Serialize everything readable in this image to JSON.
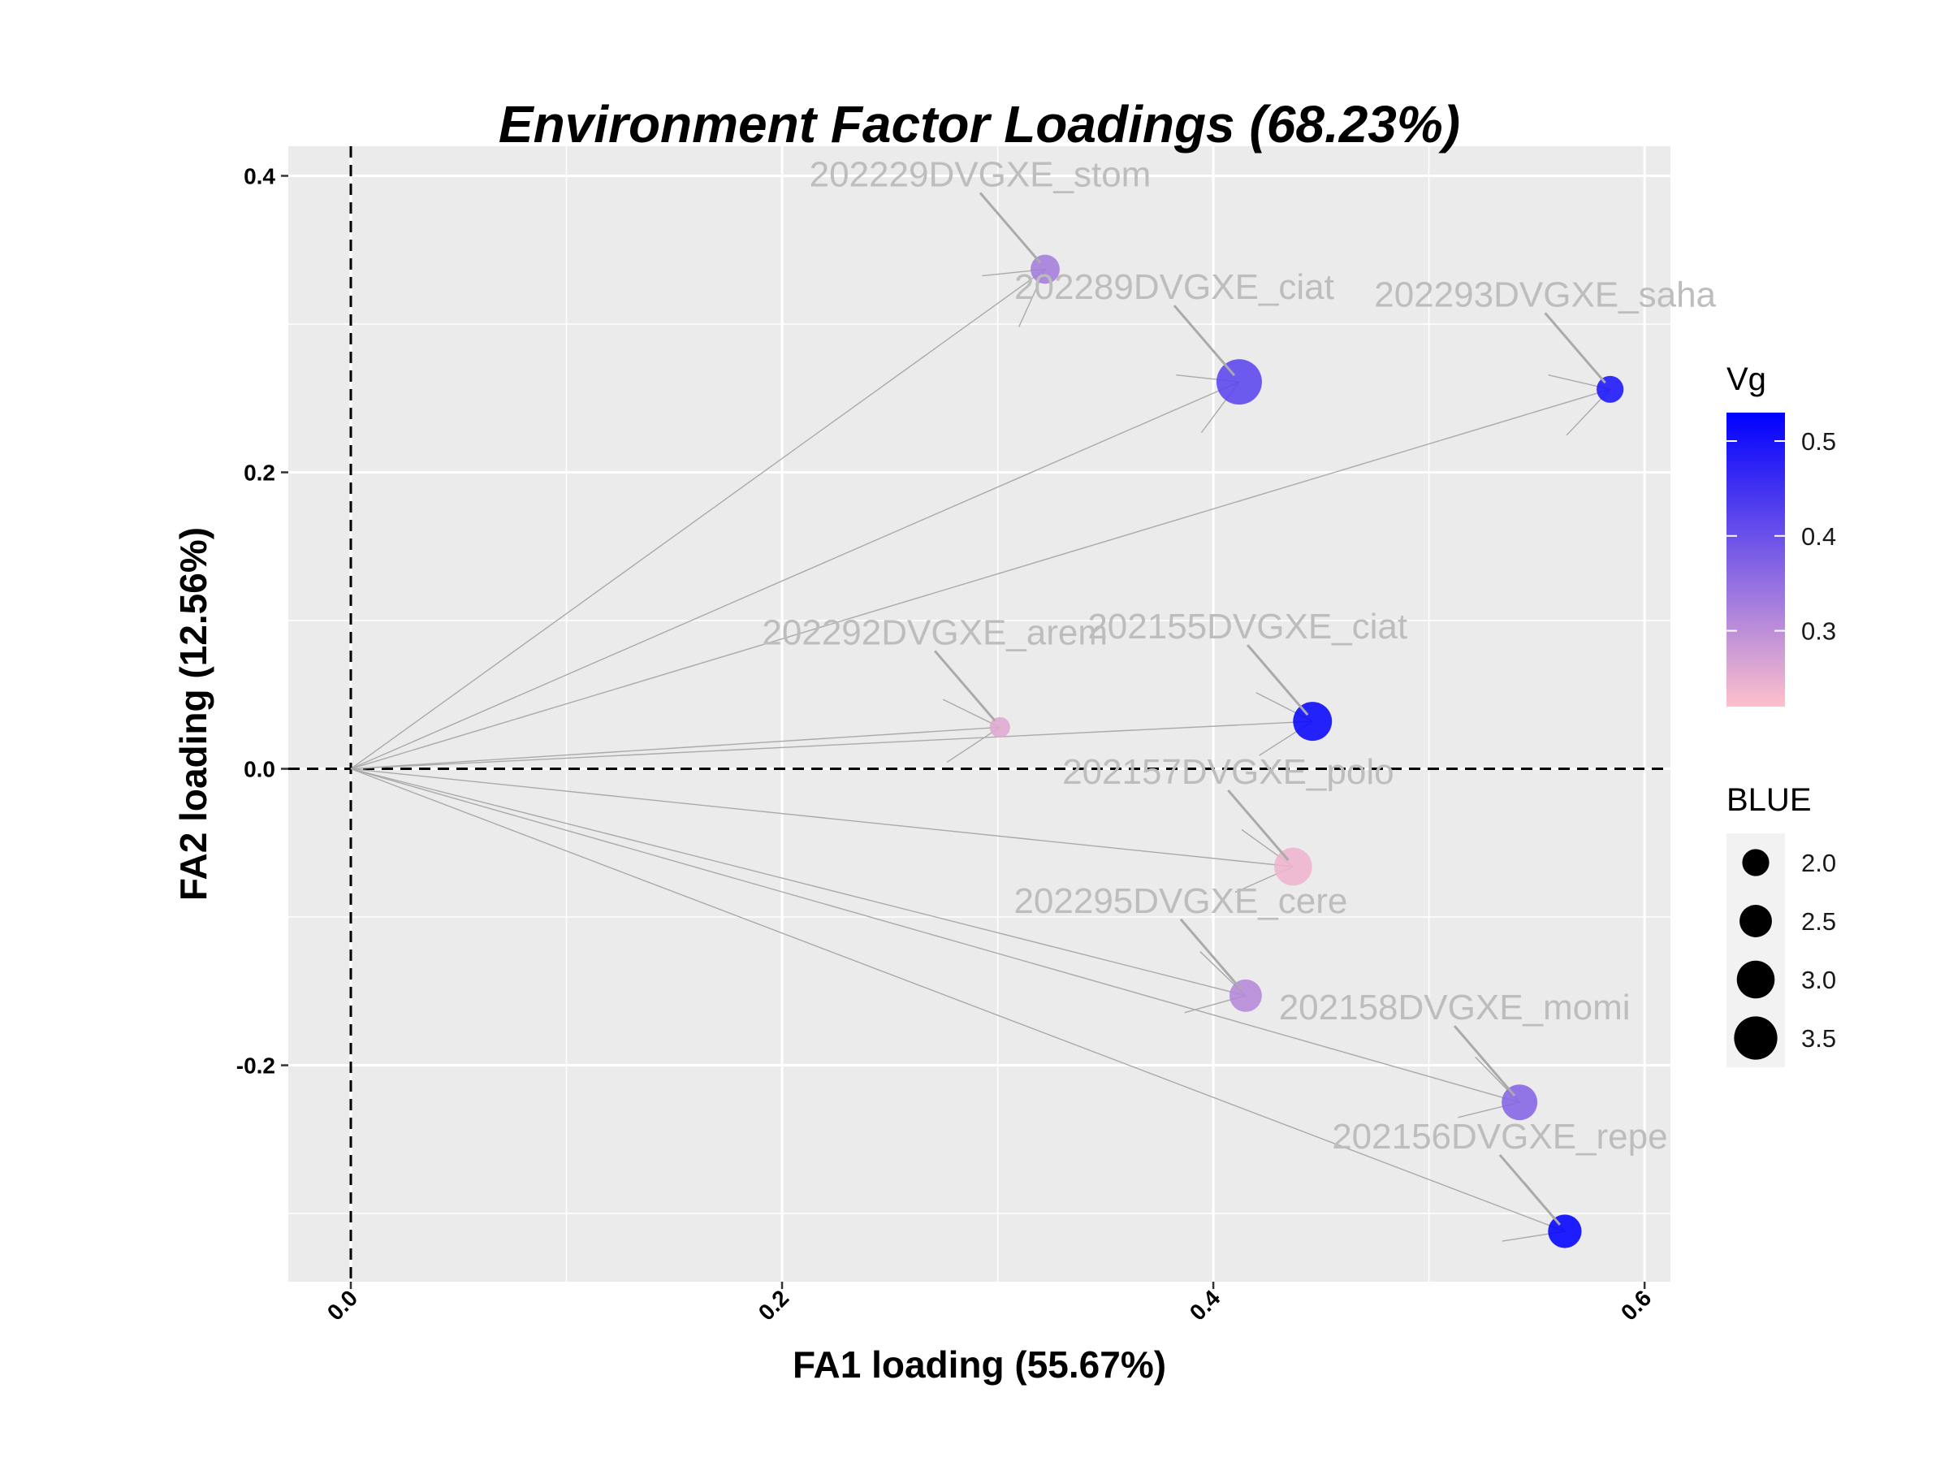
{
  "chart_data": {
    "type": "scatter",
    "title": "Environment Factor Loadings (68.23%)",
    "xlabel": "FA1 loading (55.67%)",
    "ylabel": "FA2 loading (12.56%)",
    "xlim": [
      -0.029,
      0.612
    ],
    "ylim": [
      -0.346,
      0.42
    ],
    "xticks": [
      0.0,
      0.2,
      0.4,
      0.6
    ],
    "xtick_labels": [
      "0.0",
      "0.2",
      "0.4",
      "0.6"
    ],
    "yticks": [
      -0.2,
      0.0,
      0.2,
      0.4
    ],
    "ytick_labels": [
      "-0.2",
      "0.0",
      "0.2",
      "0.4"
    ],
    "grid": true,
    "reference_lines": {
      "x": 0,
      "y": 0,
      "style": "dashed"
    },
    "points": [
      {
        "label": "202229DVGXE_stom",
        "x": 0.322,
        "y": 0.337,
        "vg": 0.33,
        "blue": 2.2
      },
      {
        "label": "202289DVGXE_ciat",
        "x": 0.412,
        "y": 0.261,
        "vg": 0.42,
        "blue": 3.7
      },
      {
        "label": "202293DVGXE_saha",
        "x": 0.584,
        "y": 0.256,
        "vg": 0.5,
        "blue": 2.0
      },
      {
        "label": "202292DVGXE_arem",
        "x": 0.301,
        "y": 0.028,
        "vg": 0.26,
        "blue": 1.4
      },
      {
        "label": "202155DVGXE_ciat",
        "x": 0.446,
        "y": 0.032,
        "vg": 0.52,
        "blue": 3.1
      },
      {
        "label": "202157DVGXE_polo",
        "x": 0.437,
        "y": -0.066,
        "vg": 0.24,
        "blue": 3.0
      },
      {
        "label": "202295DVGXE_cere",
        "x": 0.415,
        "y": -0.153,
        "vg": 0.31,
        "blue": 2.5
      },
      {
        "label": "202158DVGXE_momi",
        "x": 0.542,
        "y": -0.225,
        "vg": 0.37,
        "blue": 2.8
      },
      {
        "label": "202156DVGXE_repe",
        "x": 0.563,
        "y": -0.312,
        "vg": 0.53,
        "blue": 2.6
      }
    ],
    "legend_vg": {
      "title": "Vg",
      "placement": "right",
      "colors": [
        "#ffc0cb",
        "#0000ff"
      ],
      "range": [
        0.22,
        0.53
      ],
      "ticks": [
        0.3,
        0.4,
        0.5
      ],
      "tick_labels": [
        "0.3",
        "0.4",
        "0.5"
      ]
    },
    "legend_blue": {
      "title": "BLUE",
      "placement": "right",
      "values": [
        2.0,
        2.5,
        3.0,
        3.5
      ],
      "labels": [
        "2.0",
        "2.5",
        "3.0",
        "3.5"
      ]
    },
    "colors": {
      "panel": "#ebebeb",
      "grid": "#ffffff",
      "segment": "#aaaaaa",
      "label": "#bdbdbd"
    }
  }
}
